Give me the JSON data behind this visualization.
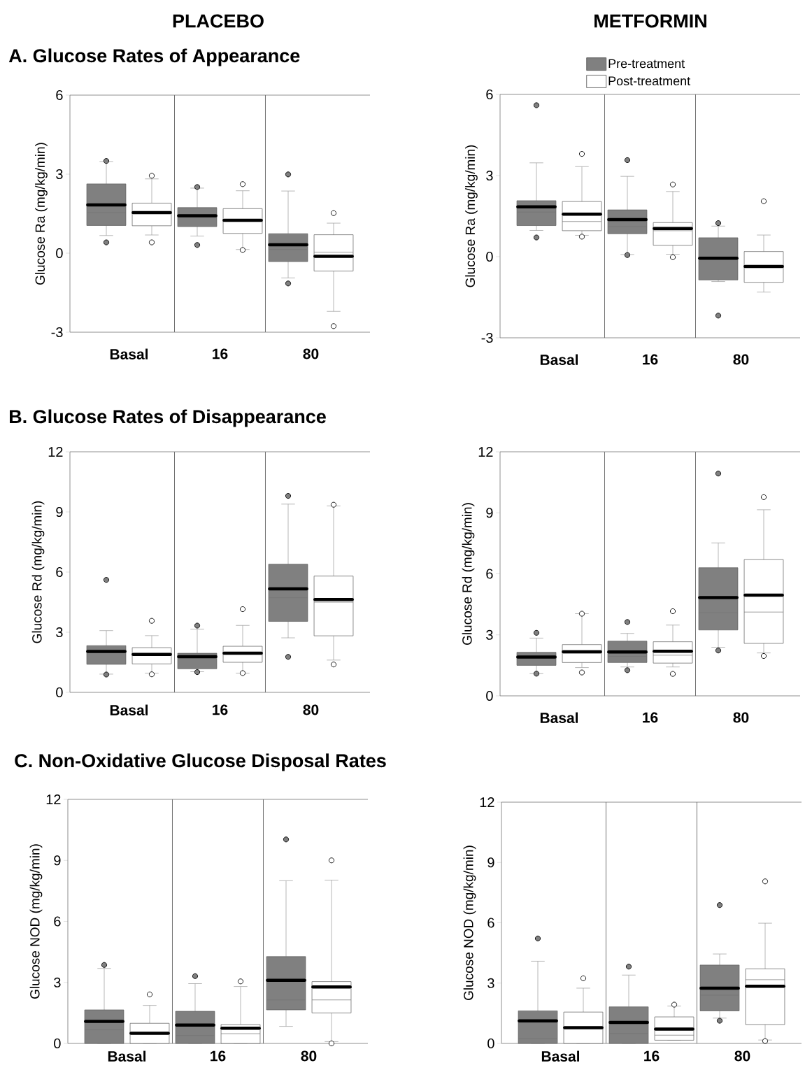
{
  "chart_data": [
    {
      "type": "box",
      "title": "PLACEBO",
      "subtitle": "A. Glucose Rates of Appearance",
      "ylabel": "Glucose Ra  (mg/kg/min)",
      "categories": [
        "Basal",
        "16",
        "80"
      ],
      "ylim": [
        -3,
        6
      ],
      "yticks": [
        -3,
        0,
        3,
        6
      ],
      "marker": "circle",
      "series": [
        {
          "color": "#808080",
          "boxes": [
            {
              "low": 0.67,
              "q1": 1.05,
              "median": 1.54,
              "q3": 2.63,
              "high": 3.48,
              "mean": 1.83,
              "outliers": [
                3.5,
                0.41
              ]
            },
            {
              "low": 0.65,
              "q1": 1.01,
              "median": 1.4,
              "q3": 1.73,
              "high": 2.47,
              "mean": 1.42,
              "outliers": [
                2.51,
                0.31
              ]
            },
            {
              "low": -0.94,
              "q1": -0.32,
              "median": 0.14,
              "q3": 0.74,
              "high": 2.36,
              "mean": 0.32,
              "outliers": [
                2.99,
                -1.15
              ]
            }
          ]
        },
        {
          "color": "#ffffff",
          "boxes": [
            {
              "low": 0.69,
              "q1": 1.04,
              "median": 1.54,
              "q3": 1.9,
              "high": 2.82,
              "mean": 1.54,
              "outliers": [
                2.94,
                0.41
              ]
            },
            {
              "low": 0.14,
              "q1": 0.75,
              "median": 1.25,
              "q3": 1.69,
              "high": 2.37,
              "mean": 1.25,
              "outliers": [
                2.62,
                0.12
              ]
            },
            {
              "low": -2.21,
              "q1": -0.68,
              "median": 0.04,
              "q3": 0.7,
              "high": 1.14,
              "mean": -0.12,
              "outliers": [
                1.52,
                -2.77
              ]
            }
          ]
        }
      ]
    },
    {
      "type": "box",
      "title": "METFORMIN",
      "ylabel": "Glucose Ra  (mg/kg/min)",
      "categories": [
        "Basal",
        "16",
        "80"
      ],
      "ylim": [
        -3,
        6
      ],
      "yticks": [
        -3,
        0,
        3,
        6
      ],
      "marker": "circle",
      "legend": "top",
      "series": [
        {
          "name": "Pre-treatment",
          "color": "#808080",
          "boxes": [
            {
              "low": 0.97,
              "q1": 1.15,
              "median": 1.65,
              "q3": 2.07,
              "high": 3.47,
              "mean": 1.84,
              "outliers": [
                5.6,
                0.71
              ]
            },
            {
              "low": 0.08,
              "q1": 0.85,
              "median": 1.11,
              "q3": 1.73,
              "high": 2.97,
              "mean": 1.37,
              "outliers": [
                3.57,
                0.06
              ]
            },
            {
              "low": -0.92,
              "q1": -0.86,
              "median": -0.06,
              "q3": 0.7,
              "high": 1.13,
              "mean": -0.06,
              "outliers": [
                1.24,
                -2.18
              ]
            }
          ]
        },
        {
          "name": "Post-treatment",
          "color": "#ffffff",
          "boxes": [
            {
              "low": 0.79,
              "q1": 0.96,
              "median": 1.3,
              "q3": 2.04,
              "high": 3.33,
              "mean": 1.57,
              "outliers": [
                3.8,
                0.74
              ]
            },
            {
              "low": 0.09,
              "q1": 0.42,
              "median": 0.96,
              "q3": 1.26,
              "high": 2.41,
              "mean": 1.04,
              "outliers": [
                2.67,
                -0.02
              ]
            },
            {
              "low": -1.31,
              "q1": -0.95,
              "median": -0.37,
              "q3": 0.19,
              "high": 0.8,
              "mean": -0.36,
              "outliers": [
                2.05
              ]
            }
          ]
        }
      ]
    },
    {
      "type": "box",
      "title": "B. Glucose Rates of Disappearance",
      "ylabel": "Glucose Rd (mg/kg/min)",
      "categories": [
        "Basal",
        "16",
        "80"
      ],
      "ylim": [
        0,
        12
      ],
      "yticks": [
        0,
        3,
        6,
        9,
        12
      ],
      "marker": "circle",
      "series": [
        {
          "color": "#808080",
          "boxes": [
            {
              "low": 0.91,
              "q1": 1.4,
              "median": 2.04,
              "q3": 2.33,
              "high": 3.08,
              "mean": 2.04,
              "outliers": [
                5.61,
                0.89
              ]
            },
            {
              "low": 1.03,
              "q1": 1.18,
              "median": 1.78,
              "q3": 1.95,
              "high": 3.15,
              "mean": 1.78,
              "outliers": [
                3.33,
                1.01
              ]
            },
            {
              "low": 2.72,
              "q1": 3.54,
              "median": 4.72,
              "q3": 6.39,
              "high": 9.39,
              "mean": 5.16,
              "outliers": [
                9.8,
                1.77
              ]
            }
          ]
        },
        {
          "color": "#ffffff",
          "boxes": [
            {
              "low": 0.96,
              "q1": 1.42,
              "median": 1.89,
              "q3": 2.23,
              "high": 2.83,
              "mean": 1.89,
              "outliers": [
                3.57,
                0.9
              ]
            },
            {
              "low": 0.96,
              "q1": 1.5,
              "median": 1.9,
              "q3": 2.3,
              "high": 3.34,
              "mean": 1.95,
              "outliers": [
                4.15,
                0.96
              ]
            },
            {
              "low": 1.61,
              "q1": 2.82,
              "median": 4.5,
              "q3": 5.8,
              "high": 9.3,
              "mean": 4.63,
              "outliers": [
                9.36,
                1.39
              ]
            }
          ]
        }
      ]
    },
    {
      "type": "box",
      "ylabel": "Glucose Rd (mg/kg/min)",
      "categories": [
        "Basal",
        "16",
        "80"
      ],
      "ylim": [
        0,
        12
      ],
      "yticks": [
        0,
        3,
        6,
        9,
        12
      ],
      "marker": "circle",
      "series": [
        {
          "color": "#808080",
          "boxes": [
            {
              "low": 1.09,
              "q1": 1.5,
              "median": 1.9,
              "q3": 2.14,
              "high": 2.84,
              "mean": 1.91,
              "outliers": [
                3.1,
                1.09
              ]
            },
            {
              "low": 1.42,
              "q1": 1.64,
              "median": 1.94,
              "q3": 2.69,
              "high": 3.07,
              "mean": 2.16,
              "outliers": [
                3.63,
                1.26
              ]
            },
            {
              "low": 2.39,
              "q1": 3.24,
              "median": 4.09,
              "q3": 6.3,
              "high": 7.52,
              "mean": 4.83,
              "outliers": [
                10.93,
                2.23
              ]
            }
          ]
        },
        {
          "color": "#ffffff",
          "boxes": [
            {
              "low": 1.39,
              "q1": 1.64,
              "median": 2.1,
              "q3": 2.52,
              "high": 4.04,
              "mean": 2.17,
              "outliers": [
                4.04,
                1.15
              ]
            },
            {
              "low": 1.42,
              "q1": 1.61,
              "median": 2.0,
              "q3": 2.66,
              "high": 3.48,
              "mean": 2.19,
              "outliers": [
                4.16,
                1.08
              ]
            },
            {
              "low": 2.11,
              "q1": 2.58,
              "median": 4.12,
              "q3": 6.7,
              "high": 9.15,
              "mean": 4.95,
              "outliers": [
                9.77,
                1.96
              ]
            }
          ]
        }
      ]
    },
    {
      "type": "box",
      "title": "C. Non-Oxidative Glucose Disposal Rates",
      "ylabel": "Glucose NOD (mg/kg/min)",
      "categories": [
        "Basal",
        "16",
        "80"
      ],
      "ylim": [
        0,
        12
      ],
      "yticks": [
        0,
        3,
        6,
        9,
        12
      ],
      "marker": "circle",
      "series": [
        {
          "color": "#808080",
          "boxes": [
            {
              "low": 0,
              "q1": 0,
              "median": 0.67,
              "q3": 1.65,
              "high": 3.69,
              "mean": 1.08,
              "outliers": [
                3.86
              ]
            },
            {
              "low": 0,
              "q1": 0,
              "median": 0.39,
              "q3": 1.58,
              "high": 2.94,
              "mean": 0.9,
              "outliers": [
                3.31
              ]
            },
            {
              "low": 0.84,
              "q1": 1.65,
              "median": 2.14,
              "q3": 4.27,
              "high": 8.0,
              "mean": 3.1,
              "outliers": [
                10.03
              ]
            }
          ]
        },
        {
          "color": "#ffffff",
          "boxes": [
            {
              "low": 0,
              "q1": 0,
              "median": 0.5,
              "q3": 0.99,
              "high": 1.87,
              "mean": 0.5,
              "outliers": [
                2.41
              ]
            },
            {
              "low": 0,
              "q1": 0,
              "median": 0.48,
              "q3": 0.93,
              "high": 2.8,
              "mean": 0.75,
              "outliers": [
                3.05
              ]
            },
            {
              "low": 0.09,
              "q1": 1.5,
              "median": 2.14,
              "q3": 3.04,
              "high": 8.03,
              "mean": 2.78,
              "outliers": [
                9.0,
                0
              ]
            }
          ]
        }
      ]
    },
    {
      "type": "box",
      "ylabel": "Glucose NOD (mg/kg/min)",
      "categories": [
        "Basal",
        "16",
        "80"
      ],
      "ylim": [
        0,
        12
      ],
      "yticks": [
        0,
        3,
        6,
        9,
        12
      ],
      "marker": "circle",
      "series": [
        {
          "color": "#808080",
          "boxes": [
            {
              "low": 0,
              "q1": 0,
              "median": 0.24,
              "q3": 1.62,
              "high": 4.09,
              "mean": 1.12,
              "outliers": [
                5.22
              ]
            },
            {
              "low": 0,
              "q1": 0,
              "median": 0.5,
              "q3": 1.82,
              "high": 3.4,
              "mean": 1.04,
              "outliers": [
                3.82
              ]
            },
            {
              "low": 1.26,
              "q1": 1.62,
              "median": 2.4,
              "q3": 3.9,
              "high": 4.45,
              "mean": 2.75,
              "outliers": [
                6.88,
                1.13
              ]
            }
          ]
        },
        {
          "color": "#ffffff",
          "boxes": [
            {
              "low": 0,
              "q1": 0,
              "median": 0.78,
              "q3": 1.56,
              "high": 2.75,
              "mean": 0.78,
              "outliers": [
                3.24
              ]
            },
            {
              "low": 0.16,
              "q1": 0.16,
              "median": 0.41,
              "q3": 1.32,
              "high": 1.86,
              "mean": 0.71,
              "outliers": [
                1.93
              ]
            },
            {
              "low": 0.17,
              "q1": 0.94,
              "median": 3.17,
              "q3": 3.71,
              "high": 5.98,
              "mean": 2.84,
              "outliers": [
                8.06,
                0.12
              ]
            }
          ]
        }
      ]
    }
  ]
}
